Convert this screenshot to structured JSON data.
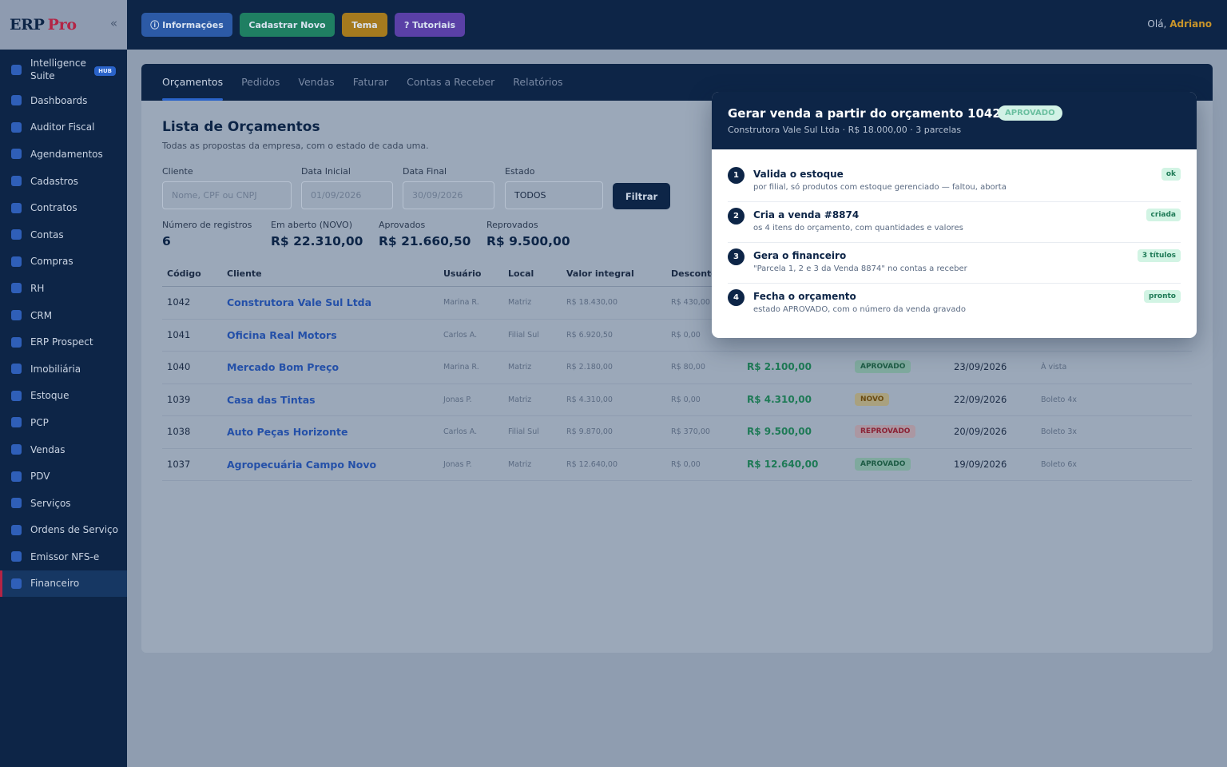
{
  "brand": {
    "name": "ERP",
    "suffix": "Pro",
    "collapse_glyph": "«"
  },
  "sidebar": {
    "items": [
      {
        "label": "Intelligence Suite",
        "badge": "HUB"
      },
      {
        "label": "Dashboards"
      },
      {
        "label": "Auditor Fiscal"
      },
      {
        "label": "Agendamentos"
      },
      {
        "label": "Cadastros"
      },
      {
        "label": "Contratos"
      },
      {
        "label": "Contas"
      },
      {
        "label": "Compras"
      },
      {
        "label": "RH"
      },
      {
        "label": "CRM"
      },
      {
        "label": "ERP Prospect"
      },
      {
        "label": "Imobiliária"
      },
      {
        "label": "Estoque"
      },
      {
        "label": "PCP"
      },
      {
        "label": "Vendas"
      },
      {
        "label": "PDV"
      },
      {
        "label": "Serviços"
      },
      {
        "label": "Ordens de Serviço"
      },
      {
        "label": "Emissor NFS-e"
      },
      {
        "label": "Financeiro",
        "active": true
      }
    ]
  },
  "topbar": {
    "buttons": {
      "info": "ⓘ Informações",
      "cadastrar": "Cadastrar Novo",
      "tema": "Tema",
      "tutoriais": "? Tutoriais"
    },
    "greeting": "Olá,",
    "user": "Adriano"
  },
  "tabs": [
    "Orçamentos",
    "Pedidos",
    "Vendas",
    "Faturar",
    "Contas a Receber",
    "Relatórios"
  ],
  "page": {
    "title": "Lista de Orçamentos",
    "subtitle": "Todas as propostas da empresa, com o estado de cada uma."
  },
  "filters": {
    "cliente_label": "Cliente",
    "cliente_placeholder": "Nome, CPF ou CNPJ",
    "data_inicial_label": "Data Inicial",
    "data_inicial_value": "01/09/2026",
    "data_final_label": "Data Final",
    "data_final_value": "30/09/2026",
    "estado_label": "Estado",
    "estado_value": "TODOS",
    "filtrar": "Filtrar"
  },
  "stats": {
    "registros_label": "Número de registros",
    "registros": "6",
    "aberto_label": "Em aberto (NOVO)",
    "aberto": "R$ 22.310,00",
    "aprovados_label": "Aprovados",
    "aprovados": "R$ 21.660,50",
    "reprovados_label": "Reprovados",
    "reprovados": "R$ 9.500,00"
  },
  "table": {
    "headers": [
      "Código",
      "Cliente",
      "Usuário",
      "Local",
      "Valor integral",
      "Desconto"
    ],
    "rows": [
      {
        "code": "1042",
        "cliente": "Construtora Vale Sul Ltda",
        "usuario": "Marina R.",
        "local": "Matriz",
        "valor": "R$ 18.430,00",
        "desconto": "R$ 430,00",
        "total": "",
        "status": "",
        "data": "",
        "pagamento": ""
      },
      {
        "code": "1041",
        "cliente": "Oficina Real Motors",
        "usuario": "Carlos A.",
        "local": "Filial Sul",
        "valor": "R$ 6.920,50",
        "desconto": "R$ 0,00",
        "total": "",
        "status": "",
        "data": "",
        "pagamento": ""
      },
      {
        "code": "1040",
        "cliente": "Mercado Bom Preço",
        "usuario": "Marina R.",
        "local": "Matriz",
        "valor": "R$ 2.180,00",
        "desconto": "R$ 80,00",
        "total": "R$ 2.100,00",
        "status": "APROVADO",
        "data": "23/09/2026",
        "pagamento": "À vista"
      },
      {
        "code": "1039",
        "cliente": "Casa das Tintas",
        "usuario": "Jonas P.",
        "local": "Matriz",
        "valor": "R$ 4.310,00",
        "desconto": "R$ 0,00",
        "total": "R$ 4.310,00",
        "status": "NOVO",
        "data": "22/09/2026",
        "pagamento": "Boleto 4x"
      },
      {
        "code": "1038",
        "cliente": "Auto Peças Horizonte",
        "usuario": "Carlos A.",
        "local": "Filial Sul",
        "valor": "R$ 9.870,00",
        "desconto": "R$ 370,00",
        "total": "R$ 9.500,00",
        "status": "REPROVADO",
        "data": "20/09/2026",
        "pagamento": "Boleto 3x"
      },
      {
        "code": "1037",
        "cliente": "Agropecuária Campo Novo",
        "usuario": "Jonas P.",
        "local": "Matriz",
        "valor": "R$ 12.640,00",
        "desconto": "R$ 0,00",
        "total": "R$ 12.640,00",
        "status": "APROVADO",
        "data": "19/09/2026",
        "pagamento": "Boleto 6x"
      }
    ]
  },
  "modal": {
    "title": "Gerar venda a partir do orçamento 1042",
    "badge": "APROVADO",
    "subtitle": "Construtora Vale Sul Ltda · R$ 18.000,00 · 3 parcelas",
    "steps": [
      {
        "num": "1",
        "title": "Valida o estoque",
        "desc": "por filial, só produtos com estoque gerenciado — faltou, aborta",
        "tag": "ok"
      },
      {
        "num": "2",
        "title": "Cria a venda #8874",
        "desc": "os 4 itens do orçamento, com quantidades e valores",
        "tag": "criada"
      },
      {
        "num": "3",
        "title": "Gera o financeiro",
        "desc": "\"Parcela 1, 2 e 3 da Venda 8874\" no contas a receber",
        "tag": "3 títulos"
      },
      {
        "num": "4",
        "title": "Fecha o orçamento",
        "desc": "estado APROVADO, com o número da venda gravado",
        "tag": "pronto"
      }
    ]
  },
  "colors": {
    "navy": "#0d2547",
    "accent_red": "#b32445",
    "link_blue": "#2450a8",
    "money_green": "#1e7a56",
    "greet_gold": "#c9952a"
  }
}
